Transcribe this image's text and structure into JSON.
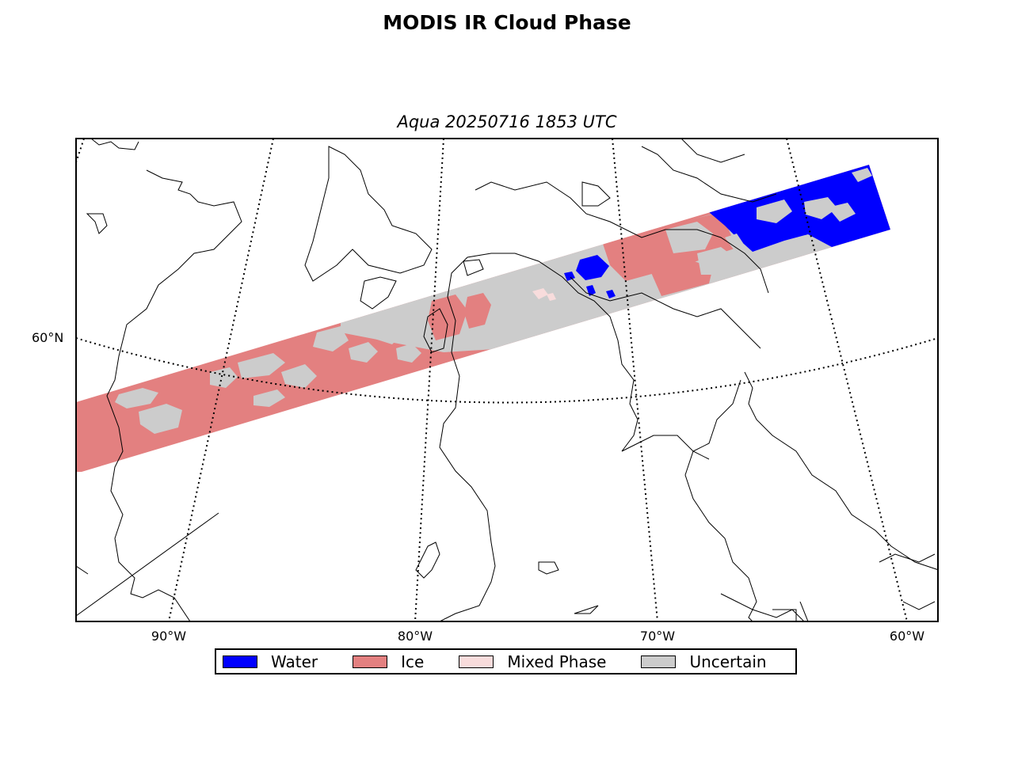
{
  "title": "MODIS IR Cloud Phase",
  "subtitle": "Aqua 20250716 1853 UTC",
  "axes": {
    "lat_labels": [
      "60°N"
    ],
    "lon_labels": [
      "90°W",
      "80°W",
      "70°W",
      "60°W"
    ]
  },
  "legend": [
    {
      "label": "Water",
      "color": "#0000ff"
    },
    {
      "label": "Ice",
      "color": "#e38080"
    },
    {
      "label": "Mixed Phase",
      "color": "#f8dcdc"
    },
    {
      "label": "Uncertain",
      "color": "#cccccc"
    }
  ],
  "colors": {
    "water": "#0000ff",
    "ice": "#e38080",
    "mixed": "#f8dcdc",
    "uncertain": "#cccccc",
    "coastline": "#000000",
    "gridline": "#000000"
  }
}
